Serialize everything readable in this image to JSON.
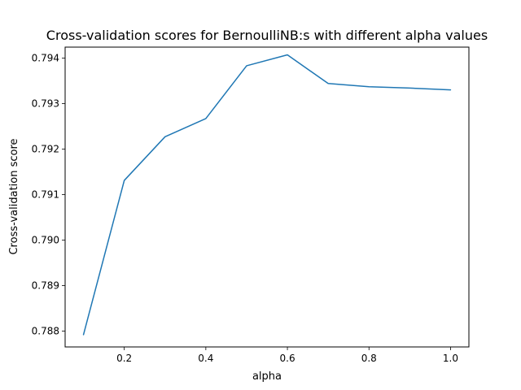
{
  "chart_data": {
    "type": "line",
    "title": "Cross-validation scores for BernoulliNB:s with different alpha values",
    "xlabel": "alpha",
    "ylabel": "Cross-validation score",
    "xlim": [
      0.055,
      1.045
    ],
    "ylim": [
      0.78765,
      0.79424
    ],
    "xticks": [
      0.2,
      0.4,
      0.6,
      0.8,
      1.0
    ],
    "xtick_labels": [
      "0.2",
      "0.4",
      "0.6",
      "0.8",
      "1.0"
    ],
    "yticks": [
      0.788,
      0.789,
      0.79,
      0.791,
      0.792,
      0.793,
      0.794
    ],
    "ytick_labels": [
      "0.788",
      "0.789",
      "0.790",
      "0.791",
      "0.792",
      "0.793",
      "0.794"
    ],
    "grid": false,
    "line_color": "#1f77b4",
    "series": [
      {
        "x": [
          0.1,
          0.2,
          0.3,
          0.4,
          0.5,
          0.6,
          0.7,
          0.8,
          0.9,
          1.0
        ],
        "values": [
          0.78792,
          0.79131,
          0.79227,
          0.79267,
          0.79383,
          0.79407,
          0.79344,
          0.79337,
          0.79334,
          0.7933
        ]
      }
    ]
  }
}
